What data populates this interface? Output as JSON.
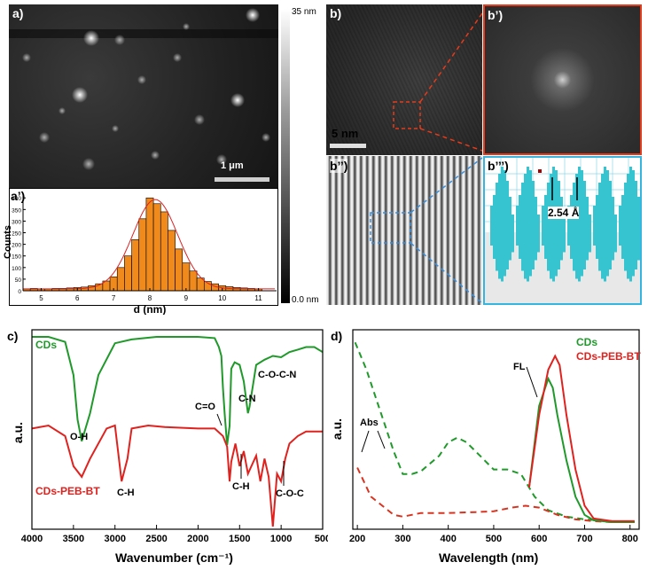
{
  "panels": {
    "a": {
      "label": "a)",
      "scalebar": "1 μm",
      "colorbar_max": "35 nm",
      "colorbar_min": "0.0 nm"
    },
    "a_prime": {
      "label": "a’)",
      "xlabel": "d (nm)",
      "ylabel": "Counts",
      "xticks": [
        "5",
        "6",
        "7",
        "8",
        "9",
        "10",
        "11"
      ],
      "yticks": [
        "0",
        "50",
        "100",
        "150",
        "200",
        "250",
        "300",
        "350",
        "400"
      ]
    },
    "b": {
      "label": "b)",
      "scalebar": "5 nm"
    },
    "b_prime": {
      "label": "b’)"
    },
    "b_dprime": {
      "label": "b’’)"
    },
    "b_tprime": {
      "label": "b’’’)",
      "spacing": "2.54 Å"
    },
    "c": {
      "label": "c)",
      "xlabel": "Wavenumber (cm⁻¹)",
      "ylabel": "a.u.",
      "xticks": [
        "4000",
        "3500",
        "3000",
        "2500",
        "2000",
        "1500",
        "1000",
        "500"
      ],
      "series_labels": {
        "cds": "CDs",
        "peb": "CDs-PEB-BT"
      },
      "annotations": [
        "O-H",
        "C=O",
        "C-N",
        "C-O-C-N",
        "C-H",
        "C-H",
        "C-O-C"
      ]
    },
    "d": {
      "label": "d)",
      "xlabel": "Wavelength (nm)",
      "ylabel": "a.u.",
      "xticks": [
        "200",
        "300",
        "400",
        "500",
        "600",
        "700",
        "800"
      ],
      "legend": [
        "CDs",
        "CDs-PEB-BT"
      ],
      "annotations": [
        "FL",
        "Abs"
      ]
    }
  },
  "colors": {
    "green": "#1f9a2a",
    "red": "#e0221f",
    "bar": "#f08a1c",
    "cyan": "#35c4d0",
    "dash_red": "#d9331f"
  },
  "chart_data": [
    {
      "type": "bar",
      "title": "",
      "xlabel": "d (nm)",
      "ylabel": "Counts",
      "xlim": [
        4.5,
        11.5
      ],
      "ylim": [
        0,
        420
      ],
      "x": [
        4.6,
        4.8,
        5.0,
        5.2,
        5.4,
        5.6,
        5.8,
        6.0,
        6.2,
        6.4,
        6.6,
        6.8,
        7.0,
        7.2,
        7.4,
        7.6,
        7.8,
        8.0,
        8.2,
        8.4,
        8.6,
        8.8,
        9.0,
        9.2,
        9.4,
        9.6,
        9.8,
        10.0,
        10.2,
        10.4,
        10.6,
        10.8,
        11.0
      ],
      "values": [
        8,
        10,
        8,
        8,
        10,
        10,
        12,
        14,
        16,
        22,
        30,
        42,
        60,
        100,
        150,
        220,
        310,
        400,
        375,
        340,
        260,
        180,
        120,
        85,
        55,
        40,
        30,
        22,
        18,
        14,
        12,
        10,
        8
      ],
      "fit": "gaussian"
    },
    {
      "type": "line",
      "title": "",
      "xlabel": "Wavenumber (cm⁻¹)",
      "ylabel": "a.u.",
      "xlim": [
        4000,
        500
      ],
      "series": [
        {
          "name": "CDs",
          "x": [
            4000,
            3800,
            3600,
            3500,
            3450,
            3400,
            3300,
            3200,
            3000,
            2800,
            2500,
            2000,
            1800,
            1750,
            1720,
            1700,
            1680,
            1650,
            1620,
            1600,
            1560,
            1500,
            1450,
            1400,
            1380,
            1300,
            1200,
            1100,
            1000,
            900,
            800,
            700,
            600,
            500
          ],
          "y": [
            100,
            100,
            96,
            70,
            35,
            18,
            40,
            70,
            95,
            98,
            100,
            100,
            99,
            92,
            85,
            60,
            40,
            15,
            30,
            75,
            80,
            78,
            65,
            40,
            45,
            78,
            82,
            85,
            84,
            88,
            90,
            92,
            92,
            88
          ]
        },
        {
          "name": "CDs-PEB-BT",
          "x": [
            4000,
            3800,
            3600,
            3500,
            3400,
            3300,
            3100,
            3000,
            2920,
            2850,
            2800,
            2600,
            2400,
            2000,
            1800,
            1700,
            1650,
            1620,
            1600,
            1550,
            1500,
            1450,
            1400,
            1300,
            1250,
            1200,
            1150,
            1100,
            1050,
            1000,
            950,
            900,
            800,
            700,
            600,
            500
          ],
          "y": [
            40,
            42,
            35,
            15,
            8,
            20,
            40,
            42,
            5,
            20,
            40,
            42,
            41,
            40,
            40,
            35,
            28,
            5,
            18,
            30,
            15,
            25,
            10,
            22,
            5,
            20,
            8,
            -25,
            10,
            5,
            20,
            30,
            35,
            38,
            38,
            38
          ]
        }
      ]
    },
    {
      "type": "line",
      "title": "",
      "xlabel": "Wavelength (nm)",
      "ylabel": "a.u.",
      "xlim": [
        190,
        820
      ],
      "series": [
        {
          "name": "CDs Abs",
          "x": [
            195,
            220,
            240,
            260,
            280,
            300,
            320,
            340,
            380,
            400,
            420,
            440,
            470,
            500,
            530,
            560,
            590,
            620,
            660,
            700,
            760,
            810
          ],
          "y": [
            200,
            170,
            140,
            110,
            80,
            55,
            55,
            58,
            75,
            90,
            95,
            90,
            75,
            60,
            60,
            55,
            30,
            15,
            8,
            5,
            3,
            2
          ]
        },
        {
          "name": "CDs-PEB-BT Abs",
          "x": [
            200,
            230,
            260,
            280,
            300,
            340,
            400,
            460,
            500,
            540,
            570,
            600,
            640,
            680,
            720,
            760,
            810
          ],
          "y": [
            62,
            30,
            18,
            10,
            8,
            12,
            12,
            13,
            14,
            18,
            20,
            18,
            10,
            5,
            3,
            2,
            2
          ]
        },
        {
          "name": "CDs FL",
          "x": [
            578,
            600,
            620,
            630,
            640,
            660,
            680,
            700,
            720,
            760,
            810
          ],
          "y": [
            40,
            130,
            160,
            150,
            120,
            70,
            30,
            10,
            4,
            2,
            2
          ]
        },
        {
          "name": "CDs-PEB-BT FL",
          "x": [
            578,
            600,
            620,
            635,
            645,
            660,
            680,
            700,
            720,
            760,
            810
          ],
          "y": [
            40,
            120,
            170,
            185,
            175,
            120,
            60,
            20,
            6,
            3,
            3
          ]
        }
      ]
    }
  ]
}
